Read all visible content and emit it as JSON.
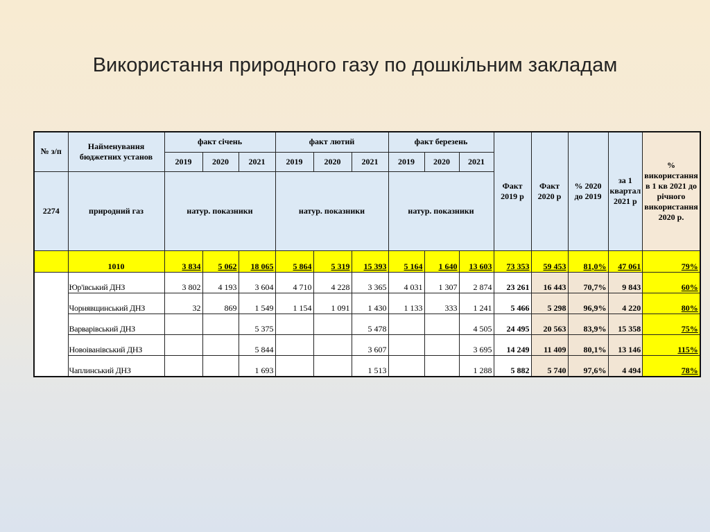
{
  "title": "Використання природного газу  по дошкільним закладам",
  "table": {
    "header": {
      "num": "№ з/п",
      "name": "Найменування бюджетних установ",
      "months": [
        "факт січень",
        "факт лютий",
        "факт березень"
      ],
      "years": [
        "2019",
        "2020",
        "2021"
      ],
      "code": "2274",
      "resource": "природний газ",
      "units": "натур. показники",
      "fact2019": "Факт 2019 р",
      "fact2020": "Факт 2020 р",
      "pct": "% 2020 до 2019",
      "q1": "за 1 квартал 2021 р",
      "share": "% використання в 1 кв 2021 до річного використання 2020 р."
    },
    "total": {
      "code": "1010",
      "values": [
        "3 834",
        "5 062",
        "18 065",
        "5 864",
        "5 319",
        "15 393",
        "5 164",
        "1 640",
        "13 603",
        "73 353",
        "59 453",
        "81,0%",
        "47 061",
        "79%"
      ]
    },
    "rows": [
      {
        "name": "Юр'івський ДНЗ",
        "values": [
          "3 802",
          "4 193",
          "3 604",
          "4 710",
          "4 228",
          "3 365",
          "4 031",
          "1 307",
          "2 874",
          "23 261",
          "16 443",
          "70,7%",
          "9 843",
          "60%"
        ]
      },
      {
        "name": "Чорнявщинський ДНЗ",
        "values": [
          "32",
          "869",
          "1 549",
          "1 154",
          "1 091",
          "1 430",
          "1 133",
          "333",
          "1 241",
          "5 466",
          "5 298",
          "96,9%",
          "4 220",
          "80%"
        ]
      },
      {
        "name": "Варварівський ДНЗ",
        "values": [
          "",
          "",
          "5 375",
          "",
          "",
          "5 478",
          "",
          "",
          "4 505",
          "24 495",
          "20 563",
          "83,9%",
          "15 358",
          "75%"
        ]
      },
      {
        "name": "Новоіванівський ДНЗ",
        "values": [
          "",
          "",
          "5 844",
          "",
          "",
          "3 607",
          "",
          "",
          "3 695",
          "14 249",
          "11 409",
          "80,1%",
          "13 146",
          "115%"
        ]
      },
      {
        "name": "Чаплинський ДНЗ",
        "values": [
          "",
          "",
          "1 693",
          "",
          "",
          "1 513",
          "",
          "",
          "1 288",
          "5 882",
          "5 740",
          "97,6%",
          "4 494",
          "78%"
        ]
      }
    ]
  }
}
